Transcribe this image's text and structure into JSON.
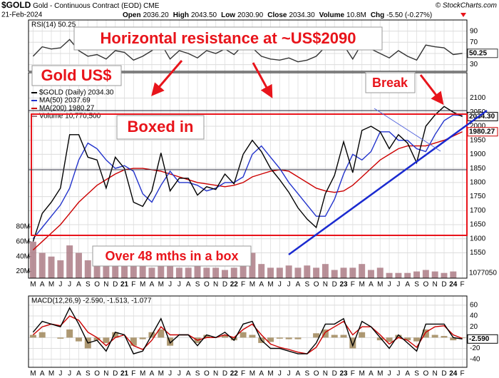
{
  "header": {
    "symbol": "$GOLD",
    "name": "Gold - Continuous Contract (EOD) CME",
    "date": "21-Feb-2024",
    "quote": [
      {
        "label": "Open",
        "value": "2036.20"
      },
      {
        "label": "High",
        "value": "2043.50"
      },
      {
        "label": "Low",
        "value": "2030.90"
      },
      {
        "label": "Close",
        "value": "2034.30"
      },
      {
        "label": "Volume",
        "value": "10.8M"
      },
      {
        "label": "Chg",
        "value": "-5.50 (-0.27%)"
      }
    ],
    "credit": "© StockCharts.com"
  },
  "annotations": [
    "Horizontal resistance at ~US$2090",
    "Gold US$",
    "Boxed in",
    "Break",
    "Over 48 mths in a box"
  ],
  "chart_data": [
    {
      "type": "line",
      "title": "RSI(14) 50.25",
      "ylim": [
        18,
        110
      ],
      "yticks": [
        90,
        70,
        50,
        30
      ],
      "grid": true,
      "series": [
        {
          "color": "#333333",
          "style": "line",
          "last_label": "50.25",
          "values": [
            45,
            62,
            58,
            60,
            75,
            55,
            45,
            48,
            40,
            55,
            52,
            38,
            45,
            55,
            68,
            40,
            55,
            50,
            42,
            55,
            50,
            58,
            48,
            65,
            60,
            45,
            40,
            38,
            42,
            35,
            38,
            45,
            62,
            60,
            65,
            40,
            68,
            58,
            50,
            42,
            55,
            45,
            38,
            65,
            62,
            60,
            48,
            50.25
          ]
        }
      ]
    },
    {
      "type": "line",
      "ylim": [
        1460,
        2190
      ],
      "yticks": [
        2100,
        2050,
        2000,
        1950,
        1900,
        1850,
        1800,
        1750,
        1700,
        1650,
        1600,
        1550
      ],
      "grid": true,
      "y2lim": [
        11,
        287
      ],
      "y2ticks": [
        {
          "value": 20,
          "label": "20M"
        },
        {
          "value": 40,
          "label": "40M"
        },
        {
          "value": 60,
          "label": "60M"
        },
        {
          "value": 80,
          "label": "80M"
        }
      ],
      "volume_tag": "1077050",
      "categories": [
        "M",
        "A",
        "M",
        "J",
        "J",
        "A",
        "S",
        "O",
        "N",
        "D",
        "21",
        "F",
        "M",
        "A",
        "M",
        "J",
        "J",
        "A",
        "S",
        "O",
        "N",
        "D",
        "22",
        "F",
        "M",
        "A",
        "M",
        "J",
        "J",
        "A",
        "S",
        "O",
        "N",
        "D",
        "23",
        "F",
        "M",
        "A",
        "M",
        "J",
        "J",
        "A",
        "S",
        "O",
        "N",
        "D",
        "24",
        "F"
      ],
      "series": [
        {
          "name": "Volume 10,770,500",
          "color": "#a8747e",
          "style": "bar",
          "axis": "y2",
          "values": [
            60,
            45,
            40,
            35,
            55,
            45,
            35,
            30,
            35,
            30,
            30,
            35,
            35,
            25,
            28,
            30,
            25,
            25,
            28,
            25,
            25,
            22,
            25,
            40,
            45,
            30,
            25,
            25,
            28,
            25,
            28,
            25,
            30,
            22,
            25,
            25,
            30,
            22,
            25,
            18,
            18,
            18,
            20,
            22,
            20,
            18,
            20,
            10.77
          ]
        },
        {
          "name": "MA(200) 1980.27",
          "color": "#cc0000",
          "style": "line",
          "last_label": "1980.27",
          "values": [
            1560,
            1590,
            1620,
            1650,
            1690,
            1730,
            1760,
            1790,
            1810,
            1830,
            1845,
            1850,
            1850,
            1845,
            1840,
            1830,
            1820,
            1810,
            1800,
            1795,
            1790,
            1785,
            1790,
            1800,
            1820,
            1830,
            1840,
            1845,
            1840,
            1820,
            1800,
            1780,
            1770,
            1765,
            1770,
            1790,
            1820,
            1850,
            1880,
            1900,
            1920,
            1930,
            1930,
            1930,
            1940,
            1950,
            1965,
            1980.27
          ]
        },
        {
          "name": "MA(50) 2037.69",
          "color": "#2233cc",
          "style": "line",
          "values": [
            1600,
            1640,
            1680,
            1720,
            1780,
            1880,
            1940,
            1920,
            1880,
            1850,
            1860,
            1840,
            1760,
            1730,
            1790,
            1840,
            1800,
            1800,
            1790,
            1770,
            1780,
            1800,
            1800,
            1820,
            1900,
            1930,
            1890,
            1850,
            1800,
            1760,
            1720,
            1680,
            1680,
            1740,
            1830,
            1900,
            1880,
            1910,
            1980,
            1980,
            1950,
            1950,
            1920,
            1910,
            1970,
            2020,
            2040,
            2037.69
          ]
        },
        {
          "name": "$GOLD (Daily) 2034.30",
          "color": "#000000",
          "style": "line",
          "last_label": "2034.30",
          "values": [
            1590,
            1690,
            1730,
            1780,
            1970,
            1970,
            1890,
            1880,
            1780,
            1890,
            1850,
            1730,
            1715,
            1770,
            1905,
            1770,
            1815,
            1815,
            1755,
            1785,
            1775,
            1830,
            1795,
            1900,
            1950,
            1910,
            1850,
            1810,
            1765,
            1710,
            1670,
            1640,
            1760,
            1825,
            1945,
            1835,
            1985,
            2000,
            1980,
            1920,
            1970,
            1940,
            1870,
            2000,
            2040,
            2070,
            2050,
            2034.3
          ]
        }
      ]
    },
    {
      "type": "line",
      "title": "MACD(12,26,9) -2.590, -1.513, -1.077",
      "ylim": [
        -55,
        77
      ],
      "yticks": [
        60,
        40,
        20,
        0,
        -20,
        -40
      ],
      "grid": true,
      "categories": [
        "M",
        "A",
        "M",
        "J",
        "J",
        "A",
        "S",
        "O",
        "N",
        "D",
        "21",
        "F",
        "M",
        "A",
        "M",
        "J",
        "J",
        "A",
        "S",
        "O",
        "N",
        "D",
        "22",
        "F",
        "M",
        "A",
        "M",
        "J",
        "J",
        "A",
        "S",
        "O",
        "N",
        "D",
        "23",
        "F",
        "M",
        "A",
        "M",
        "J",
        "J",
        "A",
        "S",
        "O",
        "N",
        "D",
        "24",
        "F"
      ],
      "series": [
        {
          "color": "#9a8050",
          "style": "bar",
          "values": [
            5,
            10,
            0,
            -2,
            15,
            -7,
            -20,
            -5,
            -10,
            10,
            0,
            -15,
            -3,
            10,
            15,
            -15,
            0,
            0,
            -10,
            5,
            0,
            5,
            -5,
            10,
            5,
            -10,
            -8,
            -2,
            -3,
            -3,
            0,
            8,
            15,
            5,
            5,
            -20,
            10,
            0,
            -5,
            -8,
            5,
            -5,
            -7,
            15,
            5,
            3,
            -5,
            -1.077
          ]
        },
        {
          "color": "#cc0000",
          "style": "line",
          "values": [
            5,
            20,
            25,
            22,
            40,
            32,
            10,
            0,
            -15,
            0,
            5,
            -15,
            -22,
            -5,
            20,
            5,
            5,
            5,
            -5,
            0,
            0,
            5,
            0,
            15,
            25,
            5,
            -12,
            -18,
            -22,
            -27,
            -30,
            -18,
            10,
            20,
            30,
            5,
            20,
            20,
            5,
            -12,
            0,
            -5,
            -18,
            10,
            20,
            22,
            5,
            -1.513
          ]
        },
        {
          "color": "#000000",
          "style": "line",
          "last_label": "-2.590",
          "values": [
            10,
            30,
            25,
            20,
            55,
            25,
            -10,
            -5,
            -25,
            10,
            5,
            -30,
            -25,
            5,
            35,
            -10,
            5,
            5,
            -15,
            5,
            0,
            10,
            -5,
            25,
            30,
            -5,
            -20,
            -20,
            -25,
            -30,
            -30,
            -10,
            25,
            25,
            35,
            -15,
            30,
            20,
            0,
            -20,
            5,
            -10,
            -25,
            25,
            25,
            25,
            0,
            -2.59
          ]
        }
      ]
    }
  ]
}
